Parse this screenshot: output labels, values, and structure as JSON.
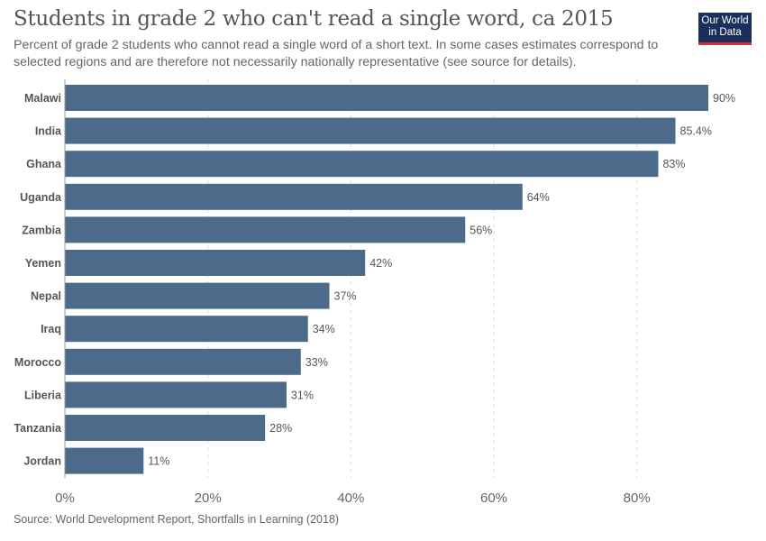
{
  "header": {
    "title": "Students in grade 2 who can't read a single word, ca 2015",
    "subtitle": "Percent of grade 2 students who cannot read a single word of a short text. In some cases estimates correspond to selected regions and are therefore not necessarily nationally representative (see source for details).",
    "logo_line1": "Our World",
    "logo_line2": "in Data"
  },
  "footer": {
    "source": "Source: World Development Report, Shortfalls in Learning (2018)"
  },
  "colors": {
    "bar": "#4c6a8a",
    "grid": "#dddddd",
    "axis": "#999999"
  },
  "chart_data": {
    "type": "bar",
    "orientation": "horizontal",
    "categories": [
      "Malawi",
      "India",
      "Ghana",
      "Uganda",
      "Zambia",
      "Yemen",
      "Nepal",
      "Iraq",
      "Morocco",
      "Liberia",
      "Tanzania",
      "Jordan"
    ],
    "values": [
      90,
      85.4,
      83,
      64,
      56,
      42,
      37,
      34,
      33,
      31,
      28,
      11
    ],
    "value_labels": [
      "90%",
      "85.4%",
      "83%",
      "64%",
      "56%",
      "42%",
      "37%",
      "34%",
      "33%",
      "31%",
      "28%",
      "11%"
    ],
    "xlim": [
      0,
      90
    ],
    "x_ticks": [
      0,
      20,
      40,
      60,
      80
    ],
    "x_tick_labels": [
      "0%",
      "20%",
      "40%",
      "60%",
      "80%"
    ],
    "grid": "vertical dashed"
  }
}
